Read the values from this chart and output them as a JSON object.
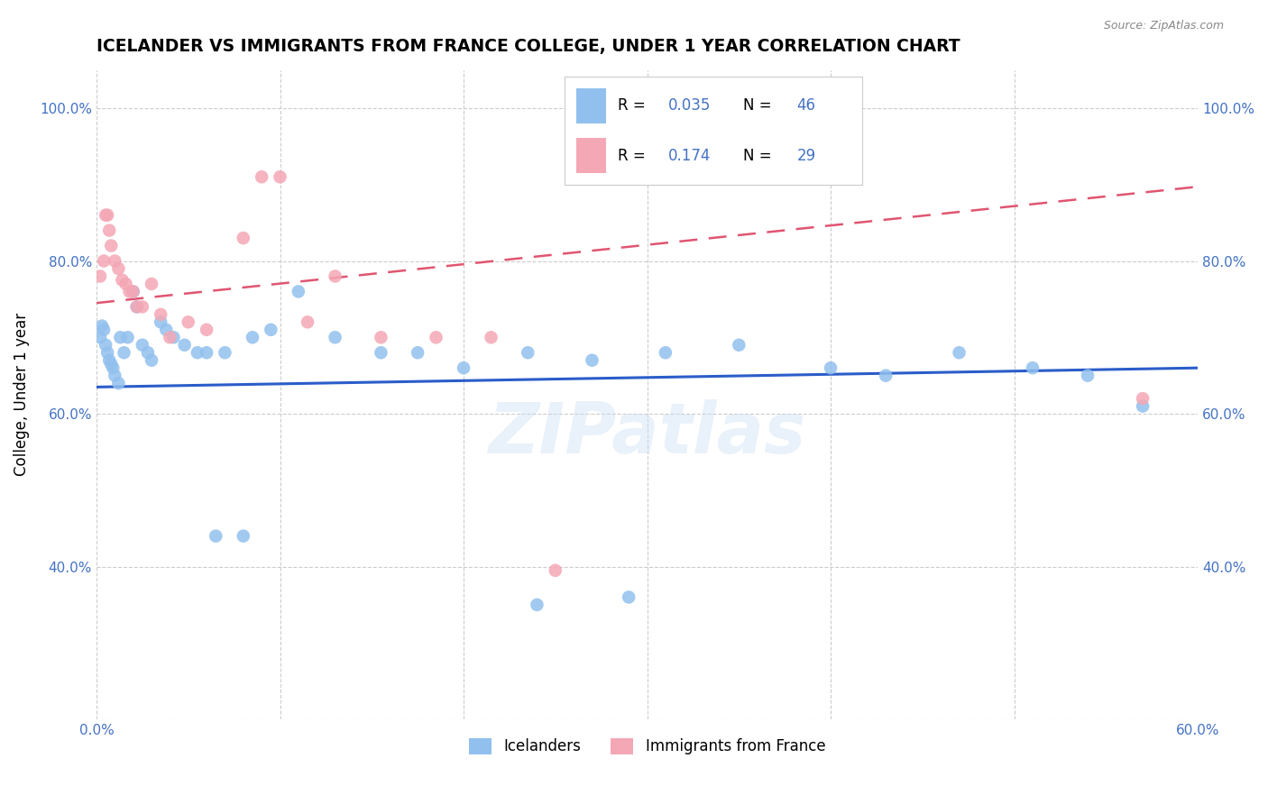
{
  "title": "ICELANDER VS IMMIGRANTS FROM FRANCE COLLEGE, UNDER 1 YEAR CORRELATION CHART",
  "source": "Source: ZipAtlas.com",
  "ylabel": "College, Under 1 year",
  "x_min": 0.0,
  "x_max": 0.6,
  "y_min": 0.2,
  "y_max": 1.05,
  "x_ticks": [
    0.0,
    0.1,
    0.2,
    0.3,
    0.4,
    0.5,
    0.6
  ],
  "y_ticks": [
    0.2,
    0.4,
    0.6,
    0.8,
    1.0
  ],
  "blue_color": "#92C0EE",
  "pink_color": "#F4A7B5",
  "blue_line_color": "#2B5DC9",
  "pink_line_color": "#E05570",
  "watermark": "ZIPatlas",
  "blue_scatter_x": [
    0.002,
    0.003,
    0.004,
    0.005,
    0.006,
    0.007,
    0.008,
    0.009,
    0.01,
    0.012,
    0.013,
    0.015,
    0.017,
    0.02,
    0.022,
    0.025,
    0.028,
    0.03,
    0.035,
    0.038,
    0.042,
    0.048,
    0.055,
    0.06,
    0.07,
    0.085,
    0.095,
    0.11,
    0.13,
    0.155,
    0.175,
    0.2,
    0.235,
    0.27,
    0.31,
    0.35,
    0.4,
    0.43,
    0.47,
    0.51,
    0.54,
    0.57,
    0.24,
    0.29,
    0.065,
    0.08
  ],
  "blue_scatter_y": [
    0.7,
    0.715,
    0.71,
    0.69,
    0.68,
    0.67,
    0.665,
    0.66,
    0.65,
    0.64,
    0.7,
    0.68,
    0.7,
    0.76,
    0.74,
    0.69,
    0.68,
    0.67,
    0.72,
    0.71,
    0.7,
    0.69,
    0.68,
    0.68,
    0.68,
    0.7,
    0.71,
    0.76,
    0.7,
    0.68,
    0.68,
    0.66,
    0.68,
    0.67,
    0.68,
    0.69,
    0.66,
    0.65,
    0.68,
    0.66,
    0.65,
    0.61,
    0.35,
    0.36,
    0.44,
    0.44
  ],
  "pink_scatter_x": [
    0.002,
    0.004,
    0.005,
    0.006,
    0.007,
    0.008,
    0.01,
    0.012,
    0.014,
    0.016,
    0.018,
    0.02,
    0.022,
    0.025,
    0.03,
    0.035,
    0.04,
    0.05,
    0.06,
    0.08,
    0.09,
    0.1,
    0.115,
    0.13,
    0.155,
    0.185,
    0.215,
    0.25,
    0.57
  ],
  "pink_scatter_y": [
    0.78,
    0.8,
    0.86,
    0.86,
    0.84,
    0.82,
    0.8,
    0.79,
    0.775,
    0.77,
    0.76,
    0.76,
    0.74,
    0.74,
    0.77,
    0.73,
    0.7,
    0.72,
    0.71,
    0.83,
    0.91,
    0.91,
    0.72,
    0.78,
    0.7,
    0.7,
    0.7,
    0.395,
    0.62
  ]
}
